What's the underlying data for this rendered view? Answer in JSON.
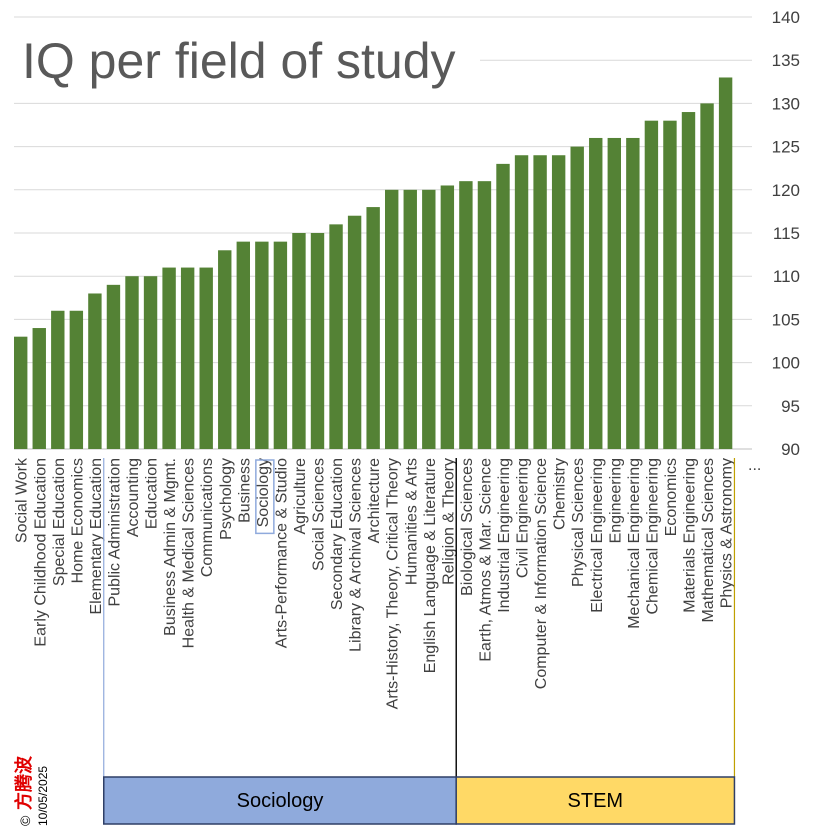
{
  "chart_data": {
    "type": "bar",
    "title": "IQ per field of study",
    "ylim": [
      90,
      140
    ],
    "yticks": [
      90,
      95,
      100,
      105,
      110,
      115,
      120,
      125,
      130,
      135,
      140
    ],
    "y_axis_side": "right",
    "grid": true,
    "bar_color": "#548235",
    "categories": [
      "Social Work",
      "Early Childhood Education",
      "Special Education",
      "Home Economics",
      "Elementary Education",
      "Public Administration",
      "Accounting",
      "Education",
      "Business Admin & Mgmt.",
      "Health & Medical Sciences",
      "Communications",
      "Psychology",
      "Business",
      "Sociology",
      "Arts-Performance & Studio",
      "Agriculture",
      "Social Sciences",
      "Secondary Education",
      "Library & Archival Sciences",
      "Architecture",
      "Arts-History, Theory, Critical Theory",
      "Humanities & Arts",
      "English Language & Literature",
      "Religion & Theory",
      "Biological Sciences",
      "Earth, Atmos & Mar. Science",
      "Industrial Engineering",
      "Civil Engineering",
      "Computer & Information Science",
      "Chemistry",
      "Physical Sciences",
      "Electrical Engineering",
      "Engineering",
      "Mechanical Engineering",
      "Chemical Engineering",
      "Economics",
      "Materials Engineering",
      "Mathematical Sciences",
      "Physics & Astronomy"
    ],
    "values": [
      103,
      104,
      106,
      106,
      108,
      109,
      110,
      110,
      111,
      111,
      111,
      113,
      114,
      114,
      114,
      115,
      115,
      116,
      117,
      118,
      120,
      120,
      120,
      120.5,
      121,
      121,
      123,
      124,
      124,
      124,
      125,
      126,
      126,
      126,
      128,
      128,
      129,
      130,
      133
    ],
    "highlighted_category": "Sociology",
    "more_indicator": "...",
    "groups": [
      {
        "name": "Sociology",
        "start": 5,
        "end": 23,
        "color": "#8faadc"
      },
      {
        "name": "STEM",
        "start": 24,
        "end": 38,
        "color": "#ffd966"
      }
    ]
  },
  "credit": {
    "mark": "©",
    "name": "方腾波",
    "date": "10/05/2025"
  }
}
